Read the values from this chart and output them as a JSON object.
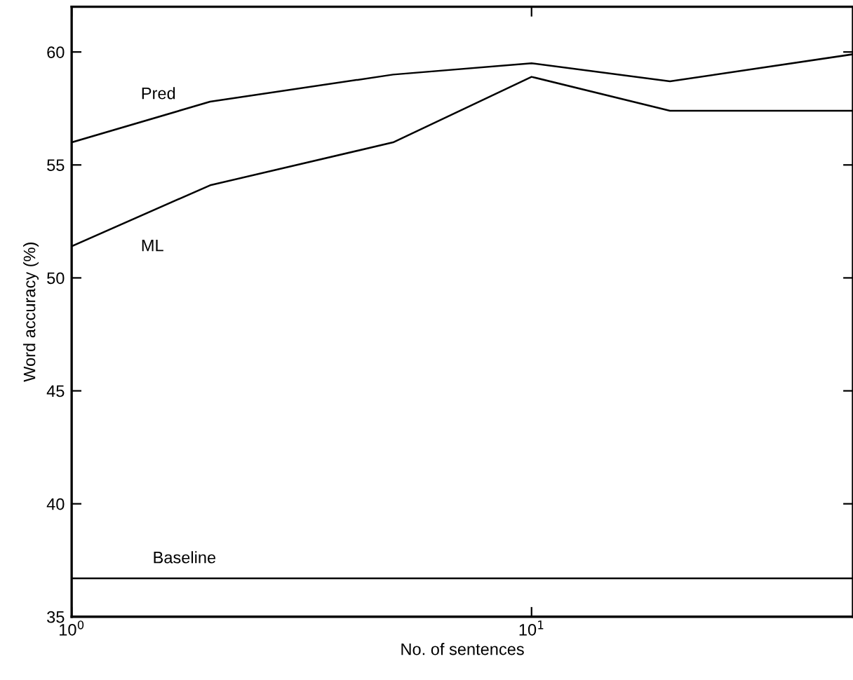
{
  "chart_data": {
    "type": "line",
    "xlabel": "No. of sentences",
    "ylabel": "Word accuracy (%)",
    "x": [
      1,
      2,
      5,
      10,
      20,
      50
    ],
    "series": [
      {
        "name": "Pred",
        "color": "#000000",
        "values": [
          56.0,
          57.8,
          59.0,
          59.5,
          58.7,
          59.9
        ]
      },
      {
        "name": "ML",
        "color": "#000000",
        "values": [
          51.4,
          54.1,
          56.0,
          58.9,
          57.4,
          57.4
        ]
      }
    ],
    "ref_lines": [
      {
        "axis": "y",
        "value": 36.7,
        "label": "Baseline",
        "color": "#000000"
      }
    ],
    "log": "x",
    "xlim": [
      1,
      50
    ],
    "ylim": [
      35,
      62
    ],
    "xticks": [
      {
        "value": 1,
        "label": "10$^{0}$"
      },
      {
        "value": 10,
        "label": "10$^{1}$"
      }
    ],
    "yticks": [
      35,
      40,
      45,
      50,
      55,
      60
    ],
    "grid": false,
    "legend": false,
    "marker": "none",
    "line_style": "solid"
  }
}
